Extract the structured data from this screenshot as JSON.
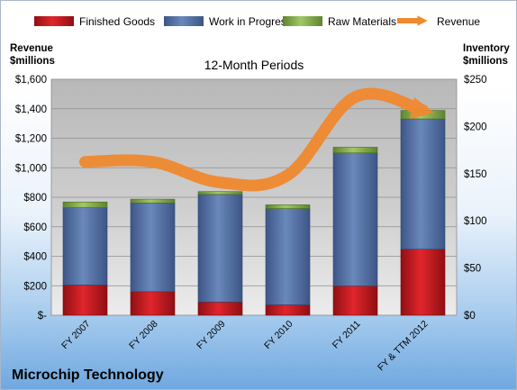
{
  "company": "Microchip Technology",
  "colors": {
    "finished_goods": "#c0161c",
    "work_in_progress": "#4f6ea3",
    "raw_materials": "#7fa843",
    "revenue": "#f0892f"
  },
  "chart_data": {
    "type": "bar",
    "subtype": "stacked bar with line overlay",
    "title": "12-Month Periods",
    "y_left_label": [
      "Revenue",
      "$millions"
    ],
    "y_right_label": [
      "Inventory",
      "$millions"
    ],
    "categories": [
      "FY 2007",
      "FY 2008",
      "FY 2009",
      "FY 2010",
      "FY 2011",
      "FY & TTM 2012"
    ],
    "y_left_ticks": [
      "$-",
      "$200",
      "$400",
      "$600",
      "$800",
      "$1,000",
      "$1,200",
      "$1,400",
      "$1,600"
    ],
    "y_right_ticks": [
      "$0",
      "$50",
      "$100",
      "$150",
      "$200",
      "$250"
    ],
    "y_left_range": [
      0,
      1600
    ],
    "y_right_range": [
      0,
      250
    ],
    "legend_position": "top",
    "series": [
      {
        "name": "Finished Goods",
        "axis": "right",
        "values": [
          32,
          25,
          14,
          11,
          31,
          70
        ]
      },
      {
        "name": "Work in Progress",
        "axis": "right",
        "values": [
          82,
          94,
          114,
          102,
          141,
          138
        ]
      },
      {
        "name": "Raw Materials",
        "axis": "right",
        "values": [
          6,
          4,
          3,
          4,
          6,
          9
        ]
      },
      {
        "name": "Revenue",
        "axis": "left",
        "type": "line",
        "values": [
          1040,
          1040,
          900,
          950,
          1480,
          1390
        ]
      }
    ]
  }
}
